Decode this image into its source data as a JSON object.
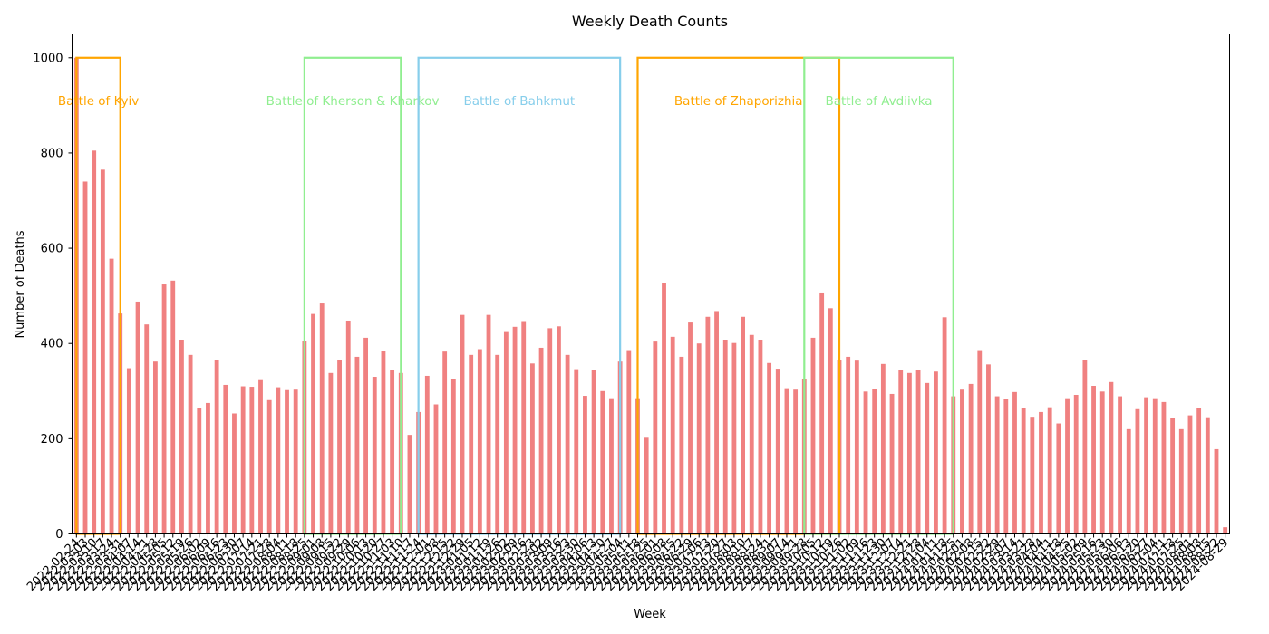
{
  "chart_data": {
    "type": "bar",
    "title": "Weekly Death Counts",
    "xlabel": "Week",
    "ylabel": "Number of Deaths",
    "ylim": [
      0,
      1050
    ],
    "yticks": [
      0,
      200,
      400,
      600,
      800,
      1000
    ],
    "grid": false,
    "colors": {
      "bar": "#f08080",
      "orange": "#ffa500",
      "green": "#90ee90",
      "blue": "#87ceeb"
    },
    "categories": [
      "2022-02-24",
      "2022-03-03",
      "2022-03-10",
      "2022-03-17",
      "2022-03-24",
      "2022-03-31",
      "2022-04-07",
      "2022-04-14",
      "2022-04-21",
      "2022-04-28",
      "2022-05-05",
      "2022-05-12",
      "2022-05-19",
      "2022-05-26",
      "2022-06-02",
      "2022-06-09",
      "2022-06-16",
      "2022-06-23",
      "2022-06-30",
      "2022-07-07",
      "2022-07-14",
      "2022-07-21",
      "2022-07-28",
      "2022-08-04",
      "2022-08-11",
      "2022-08-18",
      "2022-08-25",
      "2022-09-01",
      "2022-09-08",
      "2022-09-15",
      "2022-09-22",
      "2022-09-29",
      "2022-10-06",
      "2022-10-13",
      "2022-10-20",
      "2022-10-27",
      "2022-11-03",
      "2022-11-10",
      "2022-11-17",
      "2022-11-24",
      "2022-12-01",
      "2022-12-08",
      "2022-12-15",
      "2022-12-22",
      "2022-12-29",
      "2023-01-05",
      "2023-01-12",
      "2023-01-19",
      "2023-01-26",
      "2023-02-02",
      "2023-02-09",
      "2023-02-16",
      "2023-02-23",
      "2023-03-02",
      "2023-03-09",
      "2023-03-16",
      "2023-03-23",
      "2023-03-30",
      "2023-04-06",
      "2023-04-13",
      "2023-04-20",
      "2023-04-27",
      "2023-05-04",
      "2023-05-11",
      "2023-05-18",
      "2023-05-25",
      "2023-06-01",
      "2023-06-08",
      "2023-06-15",
      "2023-06-22",
      "2023-06-29",
      "2023-07-06",
      "2023-07-13",
      "2023-07-20",
      "2023-07-27",
      "2023-08-03",
      "2023-08-10",
      "2023-08-17",
      "2023-08-24",
      "2023-08-31",
      "2023-09-07",
      "2023-09-14",
      "2023-09-21",
      "2023-09-28",
      "2023-10-05",
      "2023-10-12",
      "2023-10-19",
      "2023-10-26",
      "2023-11-02",
      "2023-11-09",
      "2023-11-16",
      "2023-11-23",
      "2023-11-30",
      "2023-12-07",
      "2023-12-14",
      "2023-12-21",
      "2023-12-28",
      "2024-01-04",
      "2024-01-11",
      "2024-01-18",
      "2024-01-25",
      "2024-02-01",
      "2024-02-08",
      "2024-02-15",
      "2024-02-22",
      "2024-02-29",
      "2024-03-07",
      "2024-03-14",
      "2024-03-21",
      "2024-03-28",
      "2024-04-04",
      "2024-04-11",
      "2024-04-18",
      "2024-04-25",
      "2024-05-02",
      "2024-05-09",
      "2024-05-16",
      "2024-05-23",
      "2024-05-30",
      "2024-06-06",
      "2024-06-13",
      "2024-06-20",
      "2024-06-27",
      "2024-07-04",
      "2024-07-11",
      "2024-07-18",
      "2024-07-25",
      "2024-08-01",
      "2024-08-08",
      "2024-08-15",
      "2024-08-22",
      "2024-08-29"
    ],
    "values": [
      1000,
      740,
      805,
      765,
      578,
      463,
      348,
      488,
      440,
      362,
      524,
      532,
      408,
      376,
      265,
      275,
      366,
      313,
      253,
      310,
      309,
      323,
      281,
      308,
      302,
      303,
      406,
      462,
      484,
      338,
      366,
      448,
      372,
      412,
      330,
      385,
      344,
      338,
      208,
      256,
      332,
      272,
      383,
      326,
      460,
      376,
      388,
      460,
      376,
      424,
      435,
      447,
      358,
      391,
      432,
      436,
      376,
      346,
      290,
      344,
      300,
      285,
      362,
      386,
      285,
      202,
      404,
      526,
      414,
      372,
      444,
      400,
      456,
      468,
      408,
      401,
      456,
      418,
      408,
      359,
      347,
      306,
      303,
      325,
      412,
      507,
      474,
      365,
      372,
      364,
      299,
      305,
      357,
      294,
      344,
      338,
      344,
      317,
      341,
      455,
      289,
      303,
      315,
      386,
      356,
      289,
      283,
      298,
      264,
      246,
      256,
      266,
      232,
      285,
      292,
      365,
      311,
      299,
      319,
      289,
      220,
      262,
      287,
      285,
      277,
      243,
      220,
      249,
      264,
      245,
      178,
      14
    ],
    "annotations": [
      {
        "label": "Battle of Kyiv",
        "start": "2022-02-24",
        "end": "2022-03-31",
        "top": 1000,
        "color": "orange"
      },
      {
        "label": "Battle of Kherson & Kharkov",
        "start": "2022-08-25",
        "end": "2022-11-10",
        "top": 1000,
        "color": "green"
      },
      {
        "label": "Battle of Bahkmut",
        "start": "2022-11-24",
        "end": "2023-05-04",
        "top": 1000,
        "color": "blue"
      },
      {
        "label": "Battle of Zhaporizhia",
        "start": "2023-05-18",
        "end": "2023-10-26",
        "top": 1000,
        "color": "orange"
      },
      {
        "label": "Battle of Avdiivka",
        "start": "2023-09-28",
        "end": "2024-01-25",
        "top": 1000,
        "color": "green"
      }
    ]
  }
}
